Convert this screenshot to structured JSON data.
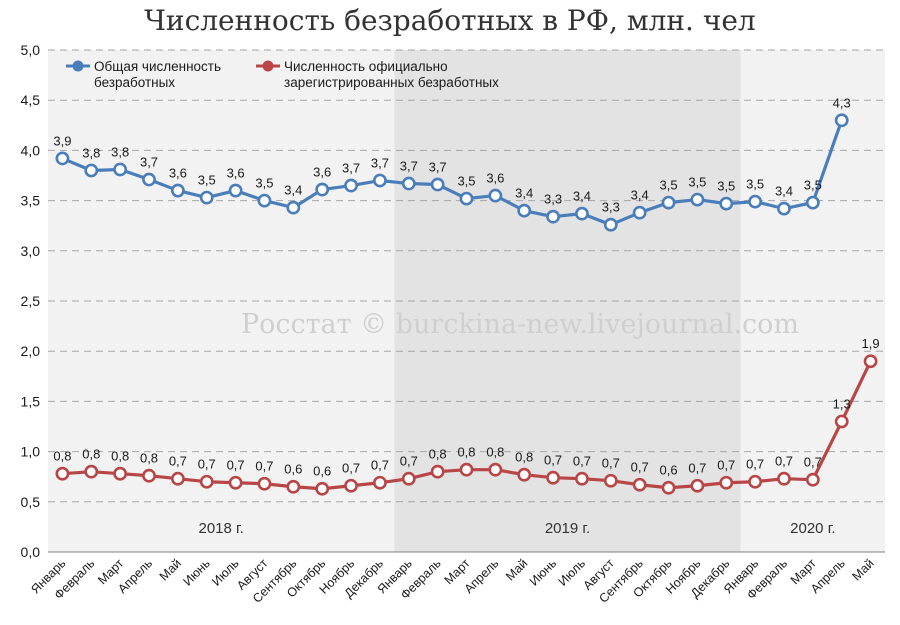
{
  "colors": {
    "series_total": "#4a7ebb",
    "series_registered": "#b94646",
    "band_light": "#f2f2f2",
    "band_dark": "#e3e3e3",
    "grid": "#a6a6a6",
    "text": "#1a1a1a",
    "watermark": "#cfcfcf"
  },
  "watermark": "Росстат © burckina-new.livejournal.com",
  "chart_data": {
    "type": "line",
    "title": "Численность безработных в РФ, млн. чел",
    "xlabel": "",
    "ylabel": "",
    "ylim": [
      0,
      5
    ],
    "yticks": [
      "0,0",
      "0,5",
      "1,0",
      "1,5",
      "2,0",
      "2,5",
      "3,0",
      "3,5",
      "4,0",
      "4,5",
      "5,0"
    ],
    "grid": true,
    "legend_position": "top-left",
    "categories": [
      "Январь",
      "Февраль",
      "Март",
      "Апрель",
      "Май",
      "Июнь",
      "Июль",
      "Август",
      "Сентябрь",
      "Октябрь",
      "Ноябрь",
      "Декабрь",
      "Январь",
      "Февраль",
      "Март",
      "Апрель",
      "Май",
      "Июнь",
      "Июль",
      "Август",
      "Сентябрь",
      "Октябрь",
      "Ноябрь",
      "Декабрь",
      "Январь",
      "Февраль",
      "Март",
      "Апрель",
      "Май"
    ],
    "year_groups": [
      {
        "label": "2018 г.",
        "count": 12
      },
      {
        "label": "2019 г.",
        "count": 12
      },
      {
        "label": "2020 г.",
        "count": 5
      }
    ],
    "series": [
      {
        "name": "Общая численность безработных",
        "color": "#4a7ebb",
        "values": [
          3.92,
          3.8,
          3.81,
          3.71,
          3.6,
          3.53,
          3.6,
          3.5,
          3.43,
          3.61,
          3.65,
          3.7,
          3.67,
          3.66,
          3.52,
          3.55,
          3.4,
          3.34,
          3.37,
          3.26,
          3.38,
          3.48,
          3.51,
          3.47,
          3.49,
          3.42,
          3.48,
          4.3,
          null
        ],
        "labels": [
          "3,9",
          "3,8",
          "3,8",
          "3,7",
          "3,6",
          "3,5",
          "3,6",
          "3,5",
          "3,4",
          "3,6",
          "3,7",
          "3,7",
          "3,7",
          "3,7",
          "3,5",
          "3,6",
          "3,4",
          "3,3",
          "3,4",
          "3,3",
          "3,4",
          "3,5",
          "3,5",
          "3,5",
          "3,5",
          "3,4",
          "3,5",
          "4,3",
          ""
        ]
      },
      {
        "name": "Численность официально зарегистрированных безработных",
        "color": "#b94646",
        "values": [
          0.78,
          0.8,
          0.78,
          0.76,
          0.73,
          0.7,
          0.69,
          0.68,
          0.65,
          0.63,
          0.66,
          0.69,
          0.73,
          0.8,
          0.82,
          0.82,
          0.77,
          0.74,
          0.73,
          0.71,
          0.67,
          0.64,
          0.66,
          0.69,
          0.7,
          0.73,
          0.72,
          1.3,
          1.9
        ],
        "labels": [
          "0,8",
          "0,8",
          "0,8",
          "0,8",
          "0,7",
          "0,7",
          "0,7",
          "0,7",
          "0,6",
          "0,6",
          "0,7",
          "0,7",
          "0,7",
          "0,8",
          "0,8",
          "0,8",
          "0,8",
          "0,7",
          "0,7",
          "0,7",
          "0,7",
          "0,6",
          "0,7",
          "0,7",
          "0,7",
          "0,7",
          "0,7",
          "1,3",
          "1,9"
        ]
      }
    ],
    "legend": [
      {
        "text": "Общая численность безработных",
        "lines": [
          "Общая численность",
          "безработных"
        ],
        "color": "#4a7ebb"
      },
      {
        "text": "Численность официально зарегистрированных безработных",
        "lines": [
          "Численность официально",
          "зарегистрированных безработных"
        ],
        "color": "#b94646"
      }
    ]
  }
}
